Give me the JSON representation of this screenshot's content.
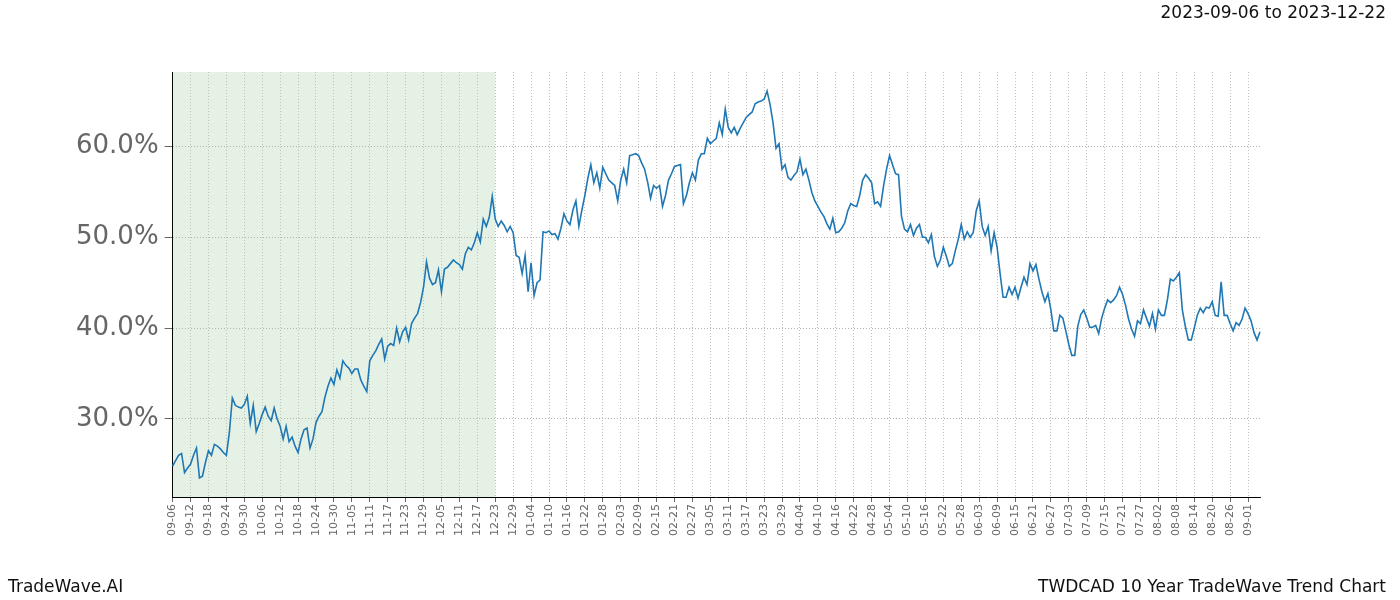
{
  "chart_data": {
    "type": "line",
    "title": "TWDCAD 10 Year TradeWave Trend Chart",
    "subtitle": "2023-09-06 to 2023-12-22",
    "credit": "TradeWave.AI",
    "color": "#1f77b4",
    "grid": true,
    "shaded": {
      "from": "09-06",
      "to": "12-23"
    },
    "ylim": [
      21.4,
      68.2
    ],
    "yticks": [
      {
        "value": 30,
        "label": "30.0%"
      },
      {
        "value": 40,
        "label": "40.0%"
      },
      {
        "value": 50,
        "label": "50.0%"
      },
      {
        "value": 60,
        "label": "60.0%"
      }
    ],
    "categories": [
      "09-06",
      null,
      null,
      null,
      null,
      null,
      "09-12",
      null,
      null,
      null,
      null,
      null,
      "09-18",
      null,
      null,
      null,
      null,
      null,
      "09-24",
      null,
      null,
      null,
      null,
      null,
      "09-30",
      null,
      null,
      null,
      null,
      null,
      "10-06",
      null,
      null,
      null,
      null,
      null,
      "10-12",
      null,
      null,
      null,
      null,
      null,
      "10-18",
      null,
      null,
      null,
      null,
      null,
      "10-24",
      null,
      null,
      null,
      null,
      null,
      "10-30",
      null,
      null,
      null,
      null,
      null,
      "11-05",
      null,
      null,
      null,
      null,
      null,
      "11-11",
      null,
      null,
      null,
      null,
      null,
      "11-17",
      null,
      null,
      null,
      null,
      null,
      "11-23",
      null,
      null,
      null,
      null,
      null,
      "11-29",
      null,
      null,
      null,
      null,
      null,
      "12-05",
      null,
      null,
      null,
      null,
      null,
      "12-11",
      null,
      null,
      null,
      null,
      null,
      "12-17",
      null,
      null,
      null,
      null,
      null,
      "12-23",
      null,
      null,
      null,
      null,
      null,
      "12-29",
      null,
      null,
      null,
      null,
      null,
      "01-04",
      null,
      null,
      null,
      null,
      null,
      "01-10",
      null,
      null,
      null,
      null,
      null,
      "01-16",
      null,
      null,
      null,
      null,
      null,
      "01-22",
      null,
      null,
      null,
      null,
      null,
      "01-28",
      null,
      null,
      null,
      null,
      null,
      "02-03",
      null,
      null,
      null,
      null,
      null,
      "02-09",
      null,
      null,
      null,
      null,
      null,
      "02-15",
      null,
      null,
      null,
      null,
      null,
      "02-21",
      null,
      null,
      null,
      null,
      null,
      "02-27",
      null,
      null,
      null,
      null,
      null,
      "03-05",
      null,
      null,
      null,
      null,
      null,
      "03-11",
      null,
      null,
      null,
      null,
      null,
      "03-17",
      null,
      null,
      null,
      null,
      null,
      "03-23",
      null,
      null,
      null,
      null,
      null,
      "03-29",
      null,
      null,
      null,
      null,
      null,
      "04-04",
      null,
      null,
      null,
      null,
      null,
      "04-10",
      null,
      null,
      null,
      null,
      null,
      "04-16",
      null,
      null,
      null,
      null,
      null,
      "04-22",
      null,
      null,
      null,
      null,
      null,
      "04-28",
      null,
      null,
      null,
      null,
      null,
      "05-04",
      null,
      null,
      null,
      null,
      null,
      "05-10",
      null,
      null,
      null,
      null,
      null,
      "05-16",
      null,
      null,
      null,
      null,
      null,
      "05-22",
      null,
      null,
      null,
      null,
      null,
      "05-28",
      null,
      null,
      null,
      null,
      null,
      "06-03",
      null,
      null,
      null,
      null,
      null,
      "06-09",
      null,
      null,
      null,
      null,
      null,
      "06-15",
      null,
      null,
      null,
      null,
      null,
      "06-21",
      null,
      null,
      null,
      null,
      null,
      "06-27",
      null,
      null,
      null,
      null,
      null,
      "07-03",
      null,
      null,
      null,
      null,
      null,
      "07-09",
      null,
      null,
      null,
      null,
      null,
      "07-15",
      null,
      null,
      null,
      null,
      null,
      "07-21",
      null,
      null,
      null,
      null,
      null,
      "07-27",
      null,
      null,
      null,
      null,
      null,
      "08-02",
      null,
      null,
      null,
      null,
      null,
      "08-08",
      null,
      null,
      null,
      null,
      null,
      "08-14",
      null,
      null,
      null,
      null,
      null,
      "08-20",
      null,
      null,
      null,
      null,
      null,
      "08-26",
      null,
      null,
      null,
      null,
      null,
      "09-01",
      null,
      null,
      null,
      null
    ],
    "values": [
      24.8,
      25.4,
      26.0,
      26.2,
      24.1,
      24.6,
      25.0,
      26.0,
      26.8,
      23.5,
      23.7,
      25.2,
      26.5,
      26.0,
      27.2,
      27.0,
      26.7,
      26.3,
      26.0,
      28.5,
      32.3,
      31.5,
      31.3,
      31.2,
      31.6,
      32.5,
      29.5,
      31.5,
      28.6,
      29.5,
      30.5,
      31.3,
      30.3,
      29.8,
      31.2,
      30.0,
      29.2,
      27.8,
      29.2,
      27.5,
      28.0,
      27.0,
      26.3,
      27.8,
      28.8,
      29.0,
      26.8,
      27.8,
      29.6,
      30.3,
      30.8,
      32.4,
      33.6,
      34.5,
      33.8,
      35.4,
      34.5,
      36.4,
      35.9,
      35.6,
      35.0,
      35.5,
      35.5,
      34.3,
      33.6,
      33.0,
      36.4,
      37.0,
      37.5,
      38.2,
      38.8,
      36.6,
      38.0,
      38.3,
      38.1,
      40.0,
      38.5,
      39.6,
      40.1,
      38.7,
      40.5,
      41.1,
      41.6,
      42.8,
      44.5,
      47.3,
      45.5,
      44.8,
      45.0,
      46.4,
      44.0,
      46.5,
      46.7,
      47.1,
      47.5,
      47.2,
      47.0,
      46.5,
      48.2,
      48.9,
      48.6,
      49.4,
      50.5,
      49.5,
      52.0,
      51.2,
      52.2,
      54.5,
      52.0,
      51.2,
      51.8,
      51.3,
      50.6,
      51.2,
      50.5,
      48.0,
      47.8,
      46.0,
      48.0,
      44.0,
      47.2,
      43.6,
      45.0,
      45.3,
      50.6,
      50.5,
      50.7,
      50.3,
      50.4,
      49.8,
      51.0,
      52.6,
      51.8,
      51.4,
      53.0,
      54.0,
      51.2,
      53.0,
      54.6,
      56.5,
      58.0,
      56.0,
      57.1,
      55.4,
      57.7,
      57.0,
      56.3,
      56.0,
      55.7,
      54.0,
      56.3,
      57.5,
      56.0,
      59.0,
      59.1,
      59.2,
      59.0,
      58.2,
      57.5,
      56.1,
      54.3,
      55.7,
      55.4,
      55.7,
      53.4,
      54.6,
      56.3,
      57.0,
      57.8,
      57.9,
      58.0,
      53.7,
      54.6,
      56.0,
      57.1,
      56.3,
      58.5,
      59.2,
      59.2,
      60.9,
      60.3,
      60.6,
      60.9,
      62.6,
      61.3,
      64.1,
      62.1,
      61.5,
      62.1,
      61.3,
      62.0,
      62.6,
      63.2,
      63.5,
      63.8,
      64.7,
      64.9,
      65.0,
      65.2,
      66.1,
      64.6,
      62.6,
      59.8,
      60.3,
      57.5,
      58.0,
      56.6,
      56.3,
      56.8,
      57.2,
      58.6,
      56.9,
      57.5,
      56.3,
      54.9,
      54.0,
      53.4,
      52.8,
      52.3,
      51.5,
      50.9,
      52.1,
      50.5,
      50.6,
      51.0,
      51.6,
      52.9,
      53.7,
      53.5,
      53.4,
      54.6,
      56.3,
      56.9,
      56.5,
      56.0,
      53.7,
      53.9,
      53.4,
      55.7,
      57.5,
      59.0,
      58.0,
      57.0,
      56.9,
      52.3,
      50.9,
      50.6,
      51.4,
      50.2,
      51.0,
      51.4,
      50.0,
      50.0,
      49.4,
      50.3,
      47.9,
      46.8,
      47.5,
      48.9,
      47.9,
      46.8,
      47.1,
      48.5,
      49.8,
      51.4,
      49.8,
      50.6,
      50.0,
      50.5,
      52.9,
      54.0,
      51.2,
      50.2,
      51.2,
      48.5,
      50.5,
      48.9,
      46.0,
      43.4,
      43.4,
      44.5,
      43.7,
      44.5,
      43.3,
      44.5,
      45.6,
      44.8,
      47.1,
      46.3,
      47.0,
      45.4,
      44.0,
      42.9,
      43.8,
      42.0,
      39.7,
      39.7,
      41.4,
      41.1,
      39.7,
      38.2,
      37.0,
      37.0,
      40.2,
      41.5,
      42.0,
      41.1,
      40.1,
      40.1,
      40.3,
      39.4,
      41.1,
      42.2,
      43.1,
      42.8,
      43.1,
      43.6,
      44.5,
      43.7,
      42.5,
      41.0,
      39.9,
      39.1,
      40.8,
      40.5,
      42.0,
      41.1,
      40.2,
      41.6,
      39.9,
      42.0,
      41.4,
      41.4,
      43.1,
      45.4,
      45.2,
      45.6,
      46.1,
      42.0,
      40.2,
      38.7,
      38.7,
      40.0,
      41.4,
      42.2,
      41.7,
      42.3,
      42.2,
      42.9,
      41.4,
      41.3,
      45.1,
      41.4,
      41.4,
      40.5,
      39.7,
      40.6,
      40.3,
      41.0,
      42.2,
      41.6,
      40.8,
      39.5,
      38.7,
      39.6
    ]
  }
}
